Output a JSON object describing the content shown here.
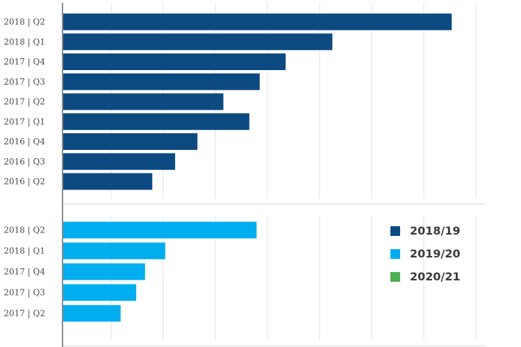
{
  "chart_data": [
    {
      "type": "bar",
      "orientation": "horizontal",
      "categories": [
        "2018 | Q2",
        "2018 | Q1",
        "2017 | Q4",
        "2017 | Q3",
        "2017 | Q2",
        "2017 | Q1",
        "2016 | Q4",
        "2016 | Q3",
        "2016 | Q2"
      ],
      "series": [
        {
          "name": "2018/19",
          "color": "#0d4a82",
          "values": [
            75,
            52,
            43,
            38,
            31,
            36,
            26,
            21.7,
            17.3
          ]
        }
      ],
      "xlim": [
        0,
        80
      ],
      "grid": true
    },
    {
      "type": "bar",
      "orientation": "horizontal",
      "categories": [
        "2018 | Q2",
        "2018 | Q1",
        "2017 | Q4",
        "2017 | Q3",
        "2017 | Q2"
      ],
      "series": [
        {
          "name": "2019/20",
          "color": "#00aeef",
          "values": [
            37.4,
            19.8,
            15.9,
            14.2,
            11.2
          ]
        }
      ],
      "xlim": [
        0,
        80
      ],
      "grid": true
    }
  ],
  "legend": {
    "placement": "bottom-right",
    "items": [
      {
        "label": "2018/19",
        "color": "#0d4a82"
      },
      {
        "label": "2019/20",
        "color": "#00aeef"
      },
      {
        "label": "2020/21",
        "color": "#4caf50"
      }
    ]
  }
}
